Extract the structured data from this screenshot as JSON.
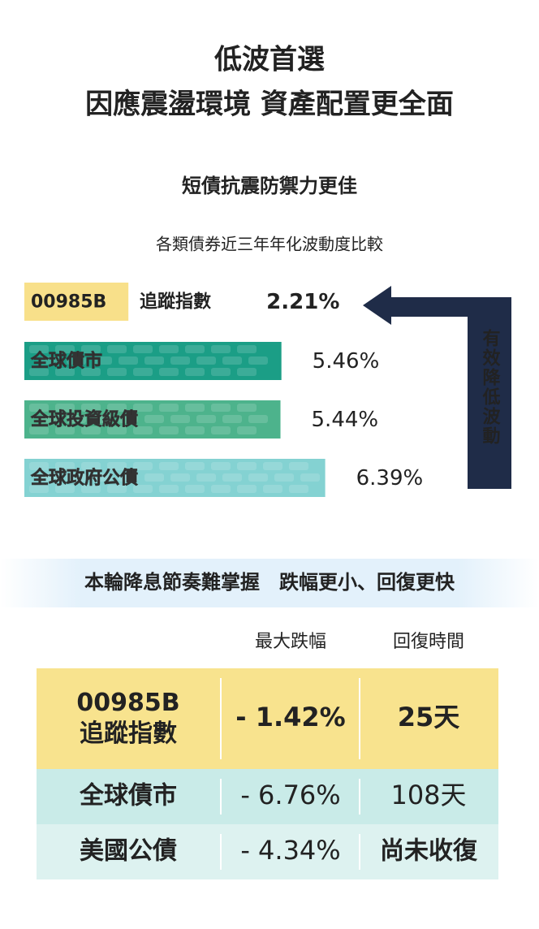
{
  "header": {
    "title_lines": [
      "低波首選",
      "因應震盪環境  資產配置更全面"
    ],
    "subtitle": "短債抗震防禦力更佳"
  },
  "chart_data": {
    "type": "hbar",
    "title": "各類債券近三年年化波動度比較",
    "categories": [
      "00985B",
      "全球債市",
      "全球投資級債",
      "全球政府公債"
    ],
    "index_label": "追蹤指數",
    "values": [
      2.21,
      5.46,
      5.44,
      6.39
    ],
    "value_labels": [
      "2.21%",
      "5.46%",
      "5.44%",
      "6.39%"
    ],
    "colors": [
      "#f8e08a",
      "#1b9e86",
      "#4db38c",
      "#84d2d2"
    ],
    "highlight_color": "#e0232a",
    "annotation": "有效降低波動",
    "annotation_color": "#1f2c48"
  },
  "table": {
    "heading": "本輪降息節奏難掌握　跌幅更小、回復更快",
    "columns": [
      "最大跌幅",
      "回復時間"
    ],
    "rows": [
      {
        "name": "00985B 追蹤指數",
        "drawdown": "- 1.42%",
        "recovery": "25天"
      },
      {
        "name": "全球債市",
        "drawdown": "- 6.76%",
        "recovery": "108天"
      },
      {
        "name": "美國公債",
        "drawdown": "- 4.34%",
        "recovery": "尚未收復"
      }
    ]
  }
}
